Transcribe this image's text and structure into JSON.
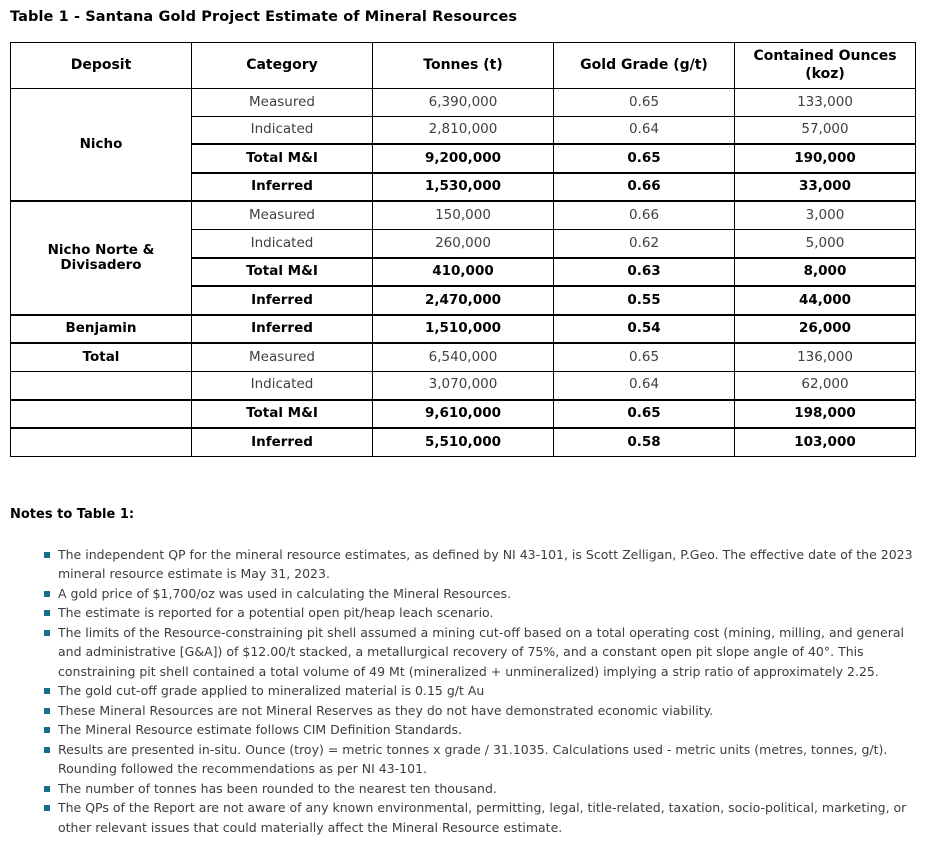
{
  "title": "Table 1 - Santana Gold Project Estimate of Mineral Resources",
  "colors": {
    "bullet_square": "#176e8c",
    "table_border": "#000000",
    "body_text": "#3f3f3f",
    "emphasis_text": "#000000"
  },
  "table": {
    "columns": [
      "Deposit",
      "Category",
      "Tonnes (t)",
      "Gold Grade (g/t)",
      "Contained Ounces (koz)"
    ],
    "rows": [
      {
        "deposit": "Nicho",
        "deposit_rowspan": 4,
        "category": "Measured",
        "tonnes": "6,390,000",
        "grade": "0.65",
        "ounces": "133,000",
        "bold": false,
        "thick_top": false
      },
      {
        "deposit": null,
        "deposit_rowspan": 0,
        "category": "Indicated",
        "tonnes": "2,810,000",
        "grade": "0.64",
        "ounces": "57,000",
        "bold": false,
        "thick_top": false
      },
      {
        "deposit": null,
        "deposit_rowspan": 0,
        "category": "Total M&I",
        "tonnes": "9,200,000",
        "grade": "0.65",
        "ounces": "190,000",
        "bold": true,
        "thick_top": true
      },
      {
        "deposit": null,
        "deposit_rowspan": 0,
        "category": "Inferred",
        "tonnes": "1,530,000",
        "grade": "0.66",
        "ounces": "33,000",
        "bold": true,
        "thick_top": true
      },
      {
        "deposit": "Nicho Norte & Divisadero",
        "deposit_rowspan": 4,
        "category": "Measured",
        "tonnes": "150,000",
        "grade": "0.66",
        "ounces": "3,000",
        "bold": false,
        "thick_top": true
      },
      {
        "deposit": null,
        "deposit_rowspan": 0,
        "category": "Indicated",
        "tonnes": "260,000",
        "grade": "0.62",
        "ounces": "5,000",
        "bold": false,
        "thick_top": false
      },
      {
        "deposit": null,
        "deposit_rowspan": 0,
        "category": "Total M&I",
        "tonnes": "410,000",
        "grade": "0.63",
        "ounces": "8,000",
        "bold": true,
        "thick_top": true
      },
      {
        "deposit": null,
        "deposit_rowspan": 0,
        "category": "Inferred",
        "tonnes": "2,470,000",
        "grade": "0.55",
        "ounces": "44,000",
        "bold": true,
        "thick_top": true
      },
      {
        "deposit": "Benjamin",
        "deposit_rowspan": 1,
        "category": "Inferred",
        "tonnes": "1,510,000",
        "grade": "0.54",
        "ounces": "26,000",
        "bold": true,
        "thick_top": true
      },
      {
        "deposit": "Total",
        "deposit_rowspan": 1,
        "category": "Measured",
        "tonnes": "6,540,000",
        "grade": "0.65",
        "ounces": "136,000",
        "bold": false,
        "thick_top": true
      },
      {
        "deposit": "",
        "deposit_rowspan": 1,
        "category": "Indicated",
        "tonnes": "3,070,000",
        "grade": "0.64",
        "ounces": "62,000",
        "bold": false,
        "thick_top": false
      },
      {
        "deposit": "",
        "deposit_rowspan": 1,
        "category": "Total M&I",
        "tonnes": "9,610,000",
        "grade": "0.65",
        "ounces": "198,000",
        "bold": true,
        "thick_top": true
      },
      {
        "deposit": "",
        "deposit_rowspan": 1,
        "category": "Inferred",
        "tonnes": "5,510,000",
        "grade": "0.58",
        "ounces": "103,000",
        "bold": true,
        "thick_top": true
      }
    ]
  },
  "notes": {
    "heading": "Notes to Table 1:",
    "items": [
      "The independent QP for the mineral resource estimates, as defined by NI 43-101, is Scott Zelligan, P.Geo. The effective date of the 2023 mineral resource estimate is May 31, 2023.",
      "A gold price of $1,700/oz was used in calculating the Mineral Resources.",
      "The estimate is reported for a potential open pit/heap leach scenario.",
      "The limits of the Resource-constraining pit shell assumed a mining cut-off based on a total operating cost (mining, milling, and general and administrative [G&A]) of $12.00/t stacked, a metallurgical recovery of 75%, and a constant open pit slope angle of 40°. This constraining pit shell contained a total volume of 49 Mt (mineralized + unmineralized) implying a strip ratio of approximately 2.25.",
      "The gold cut-off grade applied to mineralized material is 0.15 g/t Au",
      "These Mineral Resources are not Mineral Reserves as they do not have demonstrated economic viability.",
      "The Mineral Resource estimate follows CIM Definition Standards.",
      "Results are presented in-situ. Ounce (troy) = metric tonnes x grade / 31.1035. Calculations used - metric units (metres, tonnes, g/t). Rounding followed the recommendations as per NI 43-101.",
      "The number of tonnes has been rounded to the nearest ten thousand.",
      "The QPs of the Report are not aware of any known environmental, permitting, legal, title-related, taxation, socio-political, marketing, or other relevant issues that could materially affect the Mineral Resource estimate."
    ]
  }
}
